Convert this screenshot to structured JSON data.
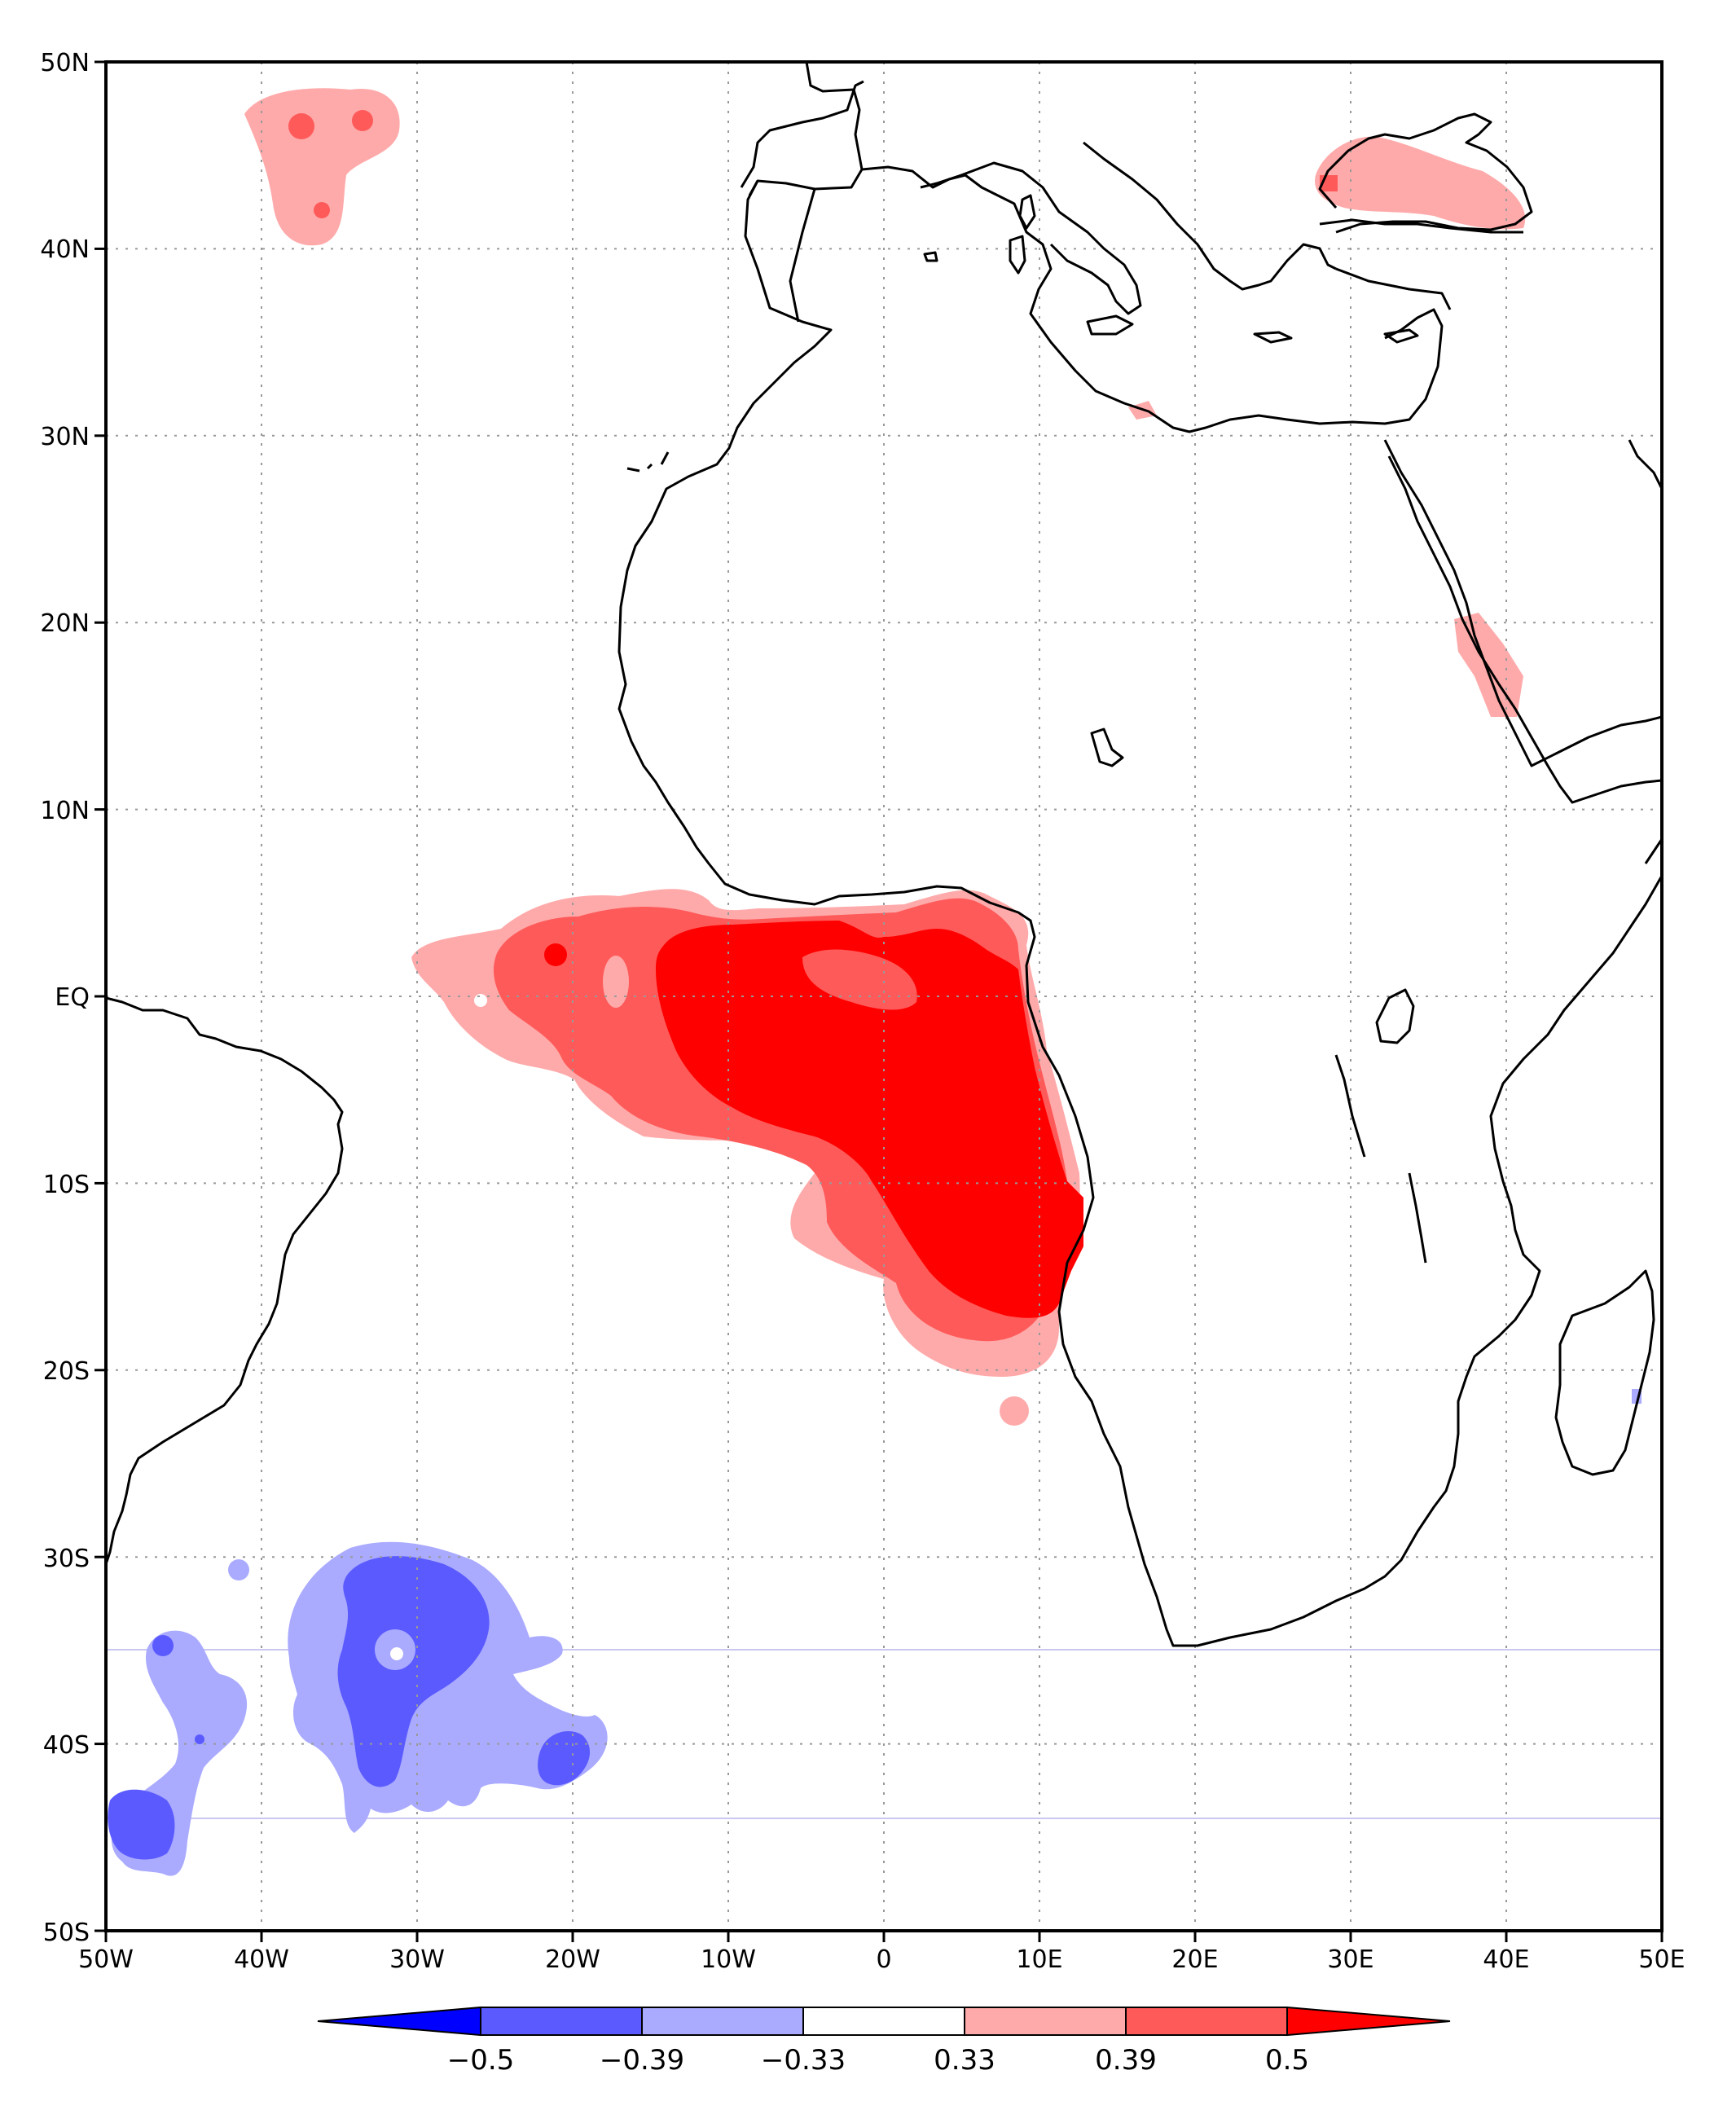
{
  "map": {
    "lat_labels": [
      "50N",
      "40N",
      "30N",
      "20N",
      "10N",
      "EQ",
      "10S",
      "20S",
      "30S",
      "40S",
      "50S"
    ],
    "lon_labels": [
      "50W",
      "40W",
      "30W",
      "20W",
      "10W",
      "0",
      "10E",
      "20E",
      "30E",
      "40E",
      "50E"
    ],
    "lat_values": [
      50,
      40,
      30,
      20,
      10,
      0,
      -10,
      -20,
      -30,
      -40,
      -50
    ],
    "lon_values": [
      -50,
      -40,
      -30,
      -20,
      -10,
      0,
      10,
      20,
      30,
      40,
      50
    ],
    "extent": {
      "lon": [
        -50,
        50
      ],
      "lat": [
        -50,
        50
      ]
    },
    "grid": "dotted",
    "coastline_color": "#000000"
  },
  "colorbar": {
    "labels": [
      "−0.5",
      "−0.39",
      "−0.33",
      "0.33",
      "0.39",
      "0.5"
    ],
    "colors": [
      "#0000ff",
      "#5a5aff",
      "#aaaaff",
      "#ffffff",
      "#ffaaaa",
      "#ff5a5a",
      "#ff0000"
    ]
  },
  "shading": {
    "pos_light": "#ffaaaa",
    "pos_mid": "#ff5a5a",
    "pos_strong": "#ff0000",
    "neg_light": "#aaaaff",
    "neg_mid": "#5a5aff"
  }
}
